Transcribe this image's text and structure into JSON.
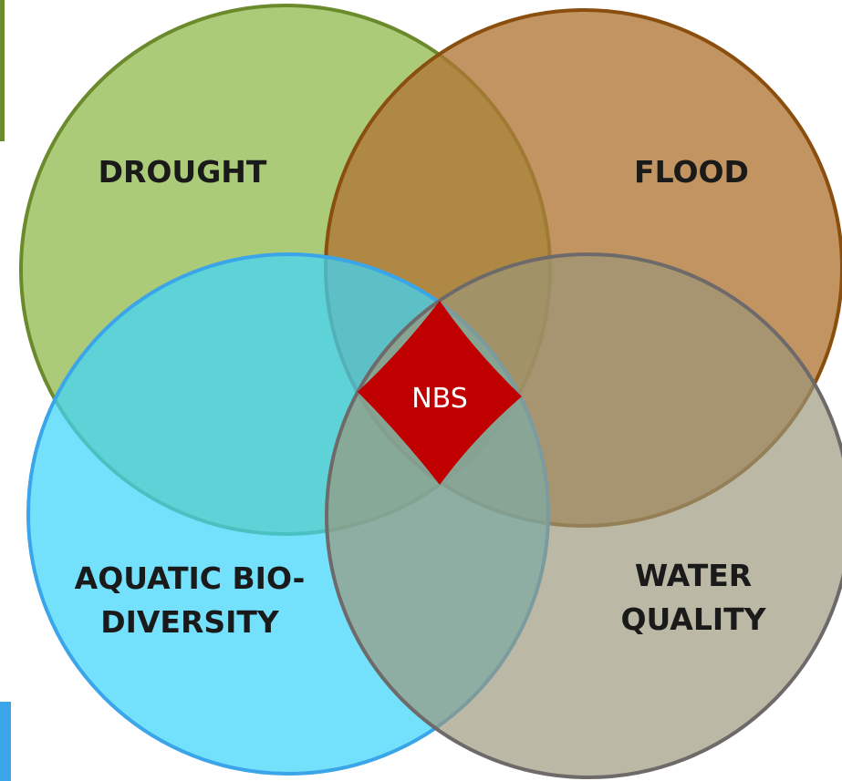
{
  "sets": [
    {
      "lines": [
        "DROUGHT"
      ]
    },
    {
      "lines": [
        "FLOOD"
      ]
    },
    {
      "lines": [
        "AQUATIC BIO-",
        "DIVERSITY"
      ]
    },
    {
      "lines": [
        "WATER",
        "QUALITY"
      ]
    }
  ],
  "center": {
    "label": "NBS"
  }
}
